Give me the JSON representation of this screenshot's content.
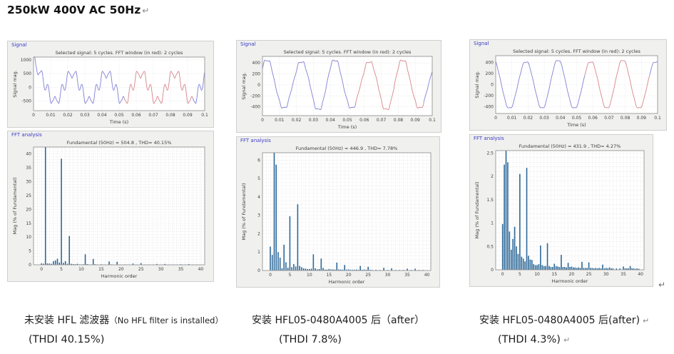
{
  "page": {
    "title": "250kW 400V AC 50Hz",
    "return_mark": "↵"
  },
  "colors": {
    "bar": "#2d6898",
    "line_blue": "#8080d8",
    "line_red": "#d8848c",
    "panel_label_blue": "#3b3bc4",
    "panel_background": "#f0f0ef",
    "grid": "#dcdcdc",
    "axis_box": "#8a8a8a"
  },
  "columns": [
    {
      "caption_zh": "未安装 HFL 滤波器",
      "caption_en": "（No HFL filter is installed）",
      "thdi": "(THDI 40.15%)"
    },
    {
      "caption_zh": "安装 HFL05-0480A4005 后",
      "caption_en": "（after）",
      "thdi": "(THDI 7.8%)"
    },
    {
      "caption_zh": "安装 HFL05-0480A4005 后",
      "caption_en": "(after)",
      "thdi": "(THDI 4.3%)",
      "return_after_caption": "↵",
      "return_after_thdi": "↵"
    }
  ],
  "chart_data": [
    {
      "id": "signal-1",
      "type": "line",
      "panel_label": "Signal",
      "title": "Selected signal: 5 cycles. FFT window (in red): 2 cycles",
      "xlabel": "Time (s)",
      "ylabel": "Signal mag.",
      "xlim": [
        0,
        0.1
      ],
      "ylim": [
        -850,
        1100
      ],
      "xticks": [
        0,
        0.01,
        0.02,
        0.03,
        0.04,
        0.05,
        0.06,
        0.07,
        0.08,
        0.09,
        0.1
      ],
      "xtick_labels": [
        "0",
        "0.01",
        "0.02",
        "0.03",
        "0.04",
        "0.05",
        "0.06",
        "0.07",
        "0.08",
        "0.09",
        "0.1"
      ],
      "yticks": [
        -500,
        0,
        500,
        1000
      ],
      "ytick_labels": [
        "-500",
        "0",
        "500",
        "1000"
      ],
      "grid_x": 0.01,
      "grid_y": 500,
      "fundamental_hz": 50,
      "fundamental_amp": 504.8,
      "harmonics": [
        [
          1,
          100,
          45
        ],
        [
          5,
          38.3,
          45
        ],
        [
          7,
          10.4,
          135
        ],
        [
          11,
          3.8,
          135
        ],
        [
          13,
          2.1,
          45
        ]
      ],
      "transient": [
        1050,
        0.0012
      ],
      "window": [
        0.053,
        0.093
      ]
    },
    {
      "id": "fft-1",
      "type": "bar",
      "panel_label": "FFT analysis",
      "title": "Fundamental (50Hz) = 504.8 , THD= 40.15%",
      "xlabel": "Harmonic order",
      "ylabel": "Mag (% of Fundamental)",
      "xlim": [
        -2,
        41
      ],
      "ylim": [
        0,
        42.5
      ],
      "xticks": [
        0,
        5,
        10,
        15,
        20,
        25,
        30,
        35,
        40
      ],
      "xtick_labels": [
        "0",
        "5",
        "10",
        "15",
        "20",
        "25",
        "30",
        "35",
        "40"
      ],
      "yticks": [
        0,
        5,
        10,
        15,
        20,
        25,
        30,
        35,
        40
      ],
      "ytick_labels": [
        "0",
        "5",
        "10",
        "15",
        "20",
        "25",
        "30",
        "35",
        "40"
      ],
      "grid_x": 1,
      "grid_y": 1,
      "bars": [
        [
          0,
          0.5
        ],
        [
          0.5,
          0.4
        ],
        [
          1,
          100
        ],
        [
          1.5,
          0.5
        ],
        [
          2,
          0.45
        ],
        [
          2.5,
          0.35
        ],
        [
          3,
          1.3
        ],
        [
          3.5,
          1.6
        ],
        [
          4,
          2.2
        ],
        [
          4.5,
          0.8
        ],
        [
          5,
          38.3
        ],
        [
          5.5,
          0.7
        ],
        [
          6,
          1.3
        ],
        [
          6.5,
          0.4
        ],
        [
          7,
          10.4
        ],
        [
          7.5,
          0.35
        ],
        [
          8,
          0.25
        ],
        [
          8.5,
          0.2
        ],
        [
          9,
          0.35
        ],
        [
          9.5,
          0.15
        ],
        [
          10,
          0.15
        ],
        [
          10.5,
          0.2
        ],
        [
          11,
          3.8
        ],
        [
          11.5,
          0.25
        ],
        [
          12,
          0.15
        ],
        [
          12.5,
          0.1
        ],
        [
          13,
          2.1
        ],
        [
          13.5,
          0.2
        ],
        [
          14,
          0.1
        ],
        [
          15,
          0.2
        ],
        [
          16,
          0.1
        ],
        [
          17,
          1.2
        ],
        [
          17.5,
          0.15
        ],
        [
          18,
          0.1
        ],
        [
          19,
          1.1
        ],
        [
          19.5,
          0.1
        ],
        [
          20,
          0.1
        ],
        [
          21,
          0.15
        ],
        [
          22,
          0.1
        ],
        [
          23,
          0.45
        ],
        [
          24,
          0.1
        ],
        [
          25,
          0.6
        ],
        [
          26,
          0.08
        ],
        [
          27,
          0.1
        ],
        [
          28,
          0.08
        ],
        [
          29,
          0.3
        ],
        [
          30,
          0.08
        ],
        [
          31,
          0.3
        ],
        [
          32,
          0.08
        ],
        [
          33,
          0.1
        ],
        [
          34,
          0.08
        ],
        [
          35,
          0.2
        ],
        [
          36,
          0.08
        ],
        [
          37,
          0.25
        ],
        [
          38,
          0.08
        ],
        [
          39,
          0.1
        ]
      ]
    },
    {
      "id": "signal-2",
      "type": "line",
      "panel_label": "Signal",
      "title": "Selected signal: 5 cycles. FFT window (in red): 2 cycles",
      "xlabel": "Time (s)",
      "ylabel": "Signal mag.",
      "xlim": [
        0,
        0.1
      ],
      "ylim": [
        -560,
        520
      ],
      "xticks": [
        0,
        0.01,
        0.02,
        0.03,
        0.04,
        0.05,
        0.06,
        0.07,
        0.08,
        0.09,
        0.1
      ],
      "xtick_labels": [
        "0",
        "0.01",
        "0.02",
        "0.03",
        "0.04",
        "0.05",
        "0.06",
        "0.07",
        "0.08",
        "0.09",
        "0.1"
      ],
      "yticks": [
        -400,
        -200,
        0,
        200,
        400
      ],
      "ytick_labels": [
        "-400",
        "-200",
        "0",
        "200",
        "400"
      ],
      "grid_x": 0.01,
      "grid_y": 200,
      "fundamental_hz": 50,
      "fundamental_amp": 446.9,
      "harmonics": [
        [
          1,
          100,
          40
        ],
        [
          1.5,
          5.75,
          60
        ],
        [
          3.5,
          1.4,
          140
        ],
        [
          5,
          2.95,
          20
        ],
        [
          7,
          3.6,
          280
        ],
        [
          11,
          0.88,
          260
        ],
        [
          13,
          0.65,
          160
        ]
      ],
      "transient": null,
      "window": [
        0.055,
        0.095
      ]
    },
    {
      "id": "fft-2",
      "type": "bar",
      "panel_label": "FFT analysis",
      "title": "Fundamental (50Hz) = 446.9 , THD= 7.78%",
      "xlabel": "Harmonic order",
      "ylabel": "Mag (% of Fundamental)",
      "xlim": [
        -2,
        41
      ],
      "ylim": [
        0,
        6.4
      ],
      "xticks": [
        0,
        5,
        10,
        15,
        20,
        25,
        30,
        35,
        40
      ],
      "xtick_labels": [
        "0",
        "5",
        "10",
        "15",
        "20",
        "25",
        "30",
        "35",
        "40"
      ],
      "yticks": [
        0,
        1,
        2,
        3,
        4,
        5,
        6
      ],
      "ytick_labels": [
        "0",
        "1",
        "2",
        "3",
        "4",
        "5",
        "6"
      ],
      "grid_x": 1,
      "grid_y": 0.2,
      "bars": [
        [
          0,
          1.3
        ],
        [
          0.5,
          0.85
        ],
        [
          1,
          100
        ],
        [
          1.5,
          5.75
        ],
        [
          2,
          1.0
        ],
        [
          2.5,
          0.7
        ],
        [
          3,
          0.12
        ],
        [
          3.5,
          1.4
        ],
        [
          4,
          0.45
        ],
        [
          4.5,
          0.15
        ],
        [
          5,
          2.95
        ],
        [
          5.5,
          0.18
        ],
        [
          6,
          0.35
        ],
        [
          6.5,
          0.22
        ],
        [
          7,
          3.6
        ],
        [
          7.5,
          0.25
        ],
        [
          8,
          0.18
        ],
        [
          8.5,
          0.12
        ],
        [
          9,
          0.1
        ],
        [
          9.5,
          0.08
        ],
        [
          10,
          0.08
        ],
        [
          10.5,
          0.1
        ],
        [
          11,
          0.88
        ],
        [
          11.5,
          0.12
        ],
        [
          12,
          0.06
        ],
        [
          12.5,
          0.08
        ],
        [
          13,
          0.65
        ],
        [
          13.5,
          0.14
        ],
        [
          14,
          0.05
        ],
        [
          14.5,
          0.05
        ],
        [
          15,
          0.08
        ],
        [
          15.5,
          0.06
        ],
        [
          16,
          0.06
        ],
        [
          16.5,
          0.05
        ],
        [
          17,
          0.43
        ],
        [
          17.5,
          0.06
        ],
        [
          18,
          0.05
        ],
        [
          18.5,
          0.05
        ],
        [
          19,
          0.3
        ],
        [
          19.5,
          0.05
        ],
        [
          20,
          0.06
        ],
        [
          20.5,
          0.04
        ],
        [
          21,
          0.04
        ],
        [
          21.5,
          0.04
        ],
        [
          22,
          0.05
        ],
        [
          22.5,
          0.04
        ],
        [
          23,
          0.25
        ],
        [
          23.5,
          0.04
        ],
        [
          24,
          0.05
        ],
        [
          24.5,
          0.04
        ],
        [
          25,
          0.2
        ],
        [
          25.5,
          0.04
        ],
        [
          26,
          0.03
        ],
        [
          27,
          0.04
        ],
        [
          28,
          0.03
        ],
        [
          29,
          0.15
        ],
        [
          30,
          0.03
        ],
        [
          31,
          0.12
        ],
        [
          32,
          0.03
        ],
        [
          33,
          0.03
        ],
        [
          34,
          0.03
        ],
        [
          35,
          0.1
        ],
        [
          36,
          0.03
        ],
        [
          37,
          0.1
        ],
        [
          38,
          0.03
        ],
        [
          39,
          0.03
        ]
      ]
    },
    {
      "id": "signal-3",
      "type": "line",
      "panel_label": "Signal",
      "title": "Selected signal: 5 cycles. FFT window (in red): 2 cycles",
      "xlabel": "Time (s)",
      "ylabel": "Signal mag.",
      "xlim": [
        0,
        0.1
      ],
      "ylim": [
        -520,
        520
      ],
      "xticks": [
        0,
        0.01,
        0.02,
        0.03,
        0.04,
        0.05,
        0.06,
        0.07,
        0.08,
        0.09,
        0.1
      ],
      "xtick_labels": [
        "0",
        "0.01",
        "0.02",
        "0.03",
        "0.04",
        "0.05",
        "0.06",
        "0.07",
        "0.08",
        "0.09",
        "0.1"
      ],
      "yticks": [
        -400,
        -200,
        0,
        200,
        400
      ],
      "ytick_labels": [
        "-400",
        "-200",
        "0",
        "200",
        "400"
      ],
      "grid_x": 0.01,
      "grid_y": 200,
      "fundamental_hz": 50,
      "fundamental_amp": 431.9,
      "harmonics": [
        [
          1,
          100,
          115
        ],
        [
          0.5,
          2.25,
          148
        ],
        [
          1.5,
          2.3,
          172
        ],
        [
          5,
          2.05,
          35
        ],
        [
          7,
          2.18,
          85
        ]
      ],
      "transient": null,
      "window": [
        0.055,
        0.095
      ]
    },
    {
      "id": "fft-3",
      "type": "bar",
      "panel_label": "FFT analysis",
      "title": "Fundamental (50Hz) = 431.9 , THD= 4.27%",
      "xlabel": "Harmonic order",
      "ylabel": "Mag (% of Fundamental)",
      "xlim": [
        -2,
        41
      ],
      "ylim": [
        0,
        2.55
      ],
      "xticks": [
        0,
        5,
        10,
        15,
        20,
        25,
        30,
        35,
        40
      ],
      "xtick_labels": [
        "0",
        "5",
        "10",
        "15",
        "20",
        "25",
        "30",
        "35",
        "40"
      ],
      "yticks": [
        0,
        0.5,
        1,
        1.5,
        2,
        2.5
      ],
      "ytick_labels": [
        "0",
        "0.5",
        "1",
        "1.5",
        "2",
        "2.5"
      ],
      "grid_x": 1,
      "grid_y": 0.1,
      "bars": [
        [
          0,
          0.98
        ],
        [
          0.5,
          2.25
        ],
        [
          1,
          100
        ],
        [
          1.5,
          2.3
        ],
        [
          2,
          0.82
        ],
        [
          2.5,
          0.43
        ],
        [
          3,
          0.66
        ],
        [
          3.5,
          0.92
        ],
        [
          4,
          0.5
        ],
        [
          4.5,
          0.34
        ],
        [
          5,
          2.05
        ],
        [
          5.5,
          0.28
        ],
        [
          6,
          0.24
        ],
        [
          6.5,
          0.18
        ],
        [
          7,
          2.18
        ],
        [
          7.5,
          0.3
        ],
        [
          8,
          0.22
        ],
        [
          8.5,
          0.21
        ],
        [
          9,
          0.12
        ],
        [
          9.5,
          0.1
        ],
        [
          10,
          0.1
        ],
        [
          10.5,
          0.12
        ],
        [
          11,
          0.52
        ],
        [
          11.5,
          0.1
        ],
        [
          12,
          0.08
        ],
        [
          12.5,
          0.08
        ],
        [
          13,
          0.57
        ],
        [
          13.5,
          0.08
        ],
        [
          14,
          0.06
        ],
        [
          14.5,
          0.06
        ],
        [
          15,
          0.13
        ],
        [
          15.5,
          0.08
        ],
        [
          16,
          0.07
        ],
        [
          16.5,
          0.06
        ],
        [
          17,
          0.32
        ],
        [
          17.5,
          0.06
        ],
        [
          18,
          0.06
        ],
        [
          18.5,
          0.05
        ],
        [
          19,
          0.15
        ],
        [
          19.5,
          0.06
        ],
        [
          20,
          0.07
        ],
        [
          20.5,
          0.05
        ],
        [
          21,
          0.05
        ],
        [
          21.5,
          0.04
        ],
        [
          22,
          0.05
        ],
        [
          22.5,
          0.04
        ],
        [
          23,
          0.17
        ],
        [
          23.5,
          0.04
        ],
        [
          24,
          0.04
        ],
        [
          24.5,
          0.04
        ],
        [
          25,
          0.16
        ],
        [
          25.5,
          0.04
        ],
        [
          26,
          0.04
        ],
        [
          26.5,
          0.03
        ],
        [
          27,
          0.04
        ],
        [
          27.5,
          0.03
        ],
        [
          28,
          0.04
        ],
        [
          28.5,
          0.03
        ],
        [
          29,
          0.11
        ],
        [
          29.5,
          0.03
        ],
        [
          30,
          0.04
        ],
        [
          30.5,
          0.03
        ],
        [
          31,
          0.05
        ],
        [
          31.5,
          0.03
        ],
        [
          32,
          0.03
        ],
        [
          33,
          0.03
        ],
        [
          34,
          0.03
        ],
        [
          35,
          0.07
        ],
        [
          35.5,
          0.03
        ],
        [
          36,
          0.03
        ],
        [
          36.5,
          0.03
        ],
        [
          37,
          0.08
        ],
        [
          37.5,
          0.03
        ],
        [
          38,
          0.03
        ],
        [
          38.5,
          0.02
        ],
        [
          39,
          0.03
        ],
        [
          39.5,
          0.02
        ]
      ]
    }
  ]
}
